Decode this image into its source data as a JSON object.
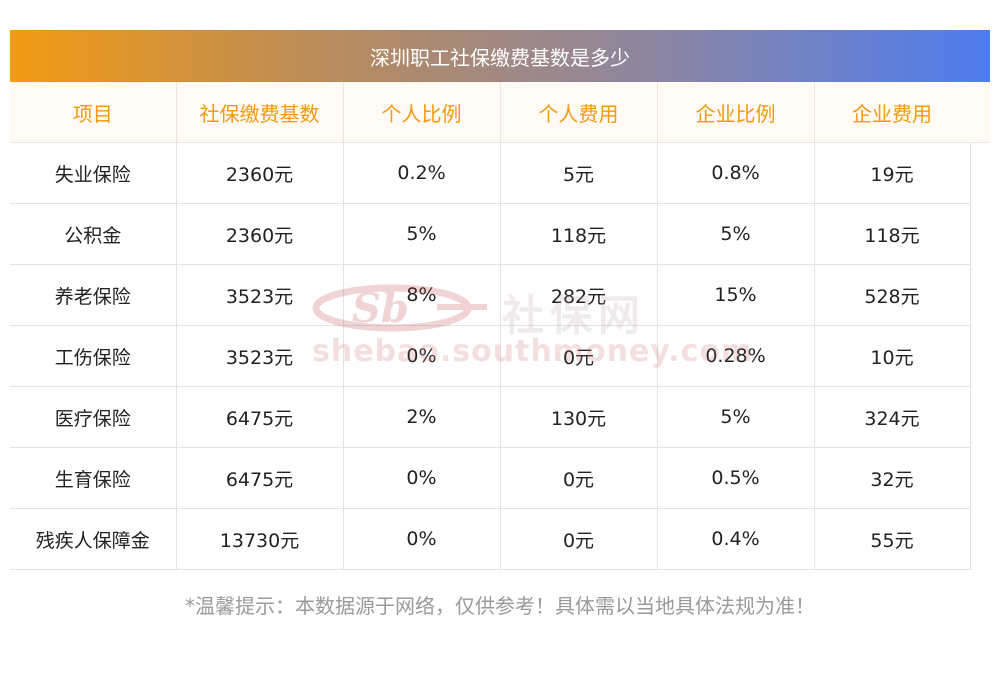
{
  "title": "深圳职工社保缴费基数是多少",
  "headers": [
    "项目",
    "社保缴费基数",
    "个人比例",
    "个人费用",
    "企业比例",
    "企业费用"
  ],
  "rows": [
    [
      "失业保险",
      "2360元",
      "0.2%",
      "5元",
      "0.8%",
      "19元"
    ],
    [
      "公积金",
      "2360元",
      "5%",
      "118元",
      "5%",
      "118元"
    ],
    [
      "养老保险",
      "3523元",
      "8%",
      "282元",
      "15%",
      "528元"
    ],
    [
      "工伤保险",
      "3523元",
      "0%",
      "0元",
      "0.28%",
      "10元"
    ],
    [
      "医疗保险",
      "6475元",
      "2%",
      "130元",
      "5%",
      "324元"
    ],
    [
      "生育保险",
      "6475元",
      "0%",
      "0元",
      "0.5%",
      "32元"
    ],
    [
      "残疾人保障金",
      "13730元",
      "0%",
      "0元",
      "0.4%",
      "55元"
    ]
  ],
  "watermark": {
    "brand": "社保网",
    "url": "shebao.southmoney.com"
  },
  "tip": "*温馨提示：本数据源于网络，仅供参考！具体需以当地具体法规为准！",
  "colors": {
    "title_gradient": [
      "#f29a12",
      "#4e7cf0"
    ],
    "header_text": "#f29a12",
    "header_bg": "#fffaf3",
    "tip_text": "#9a9a9a"
  }
}
